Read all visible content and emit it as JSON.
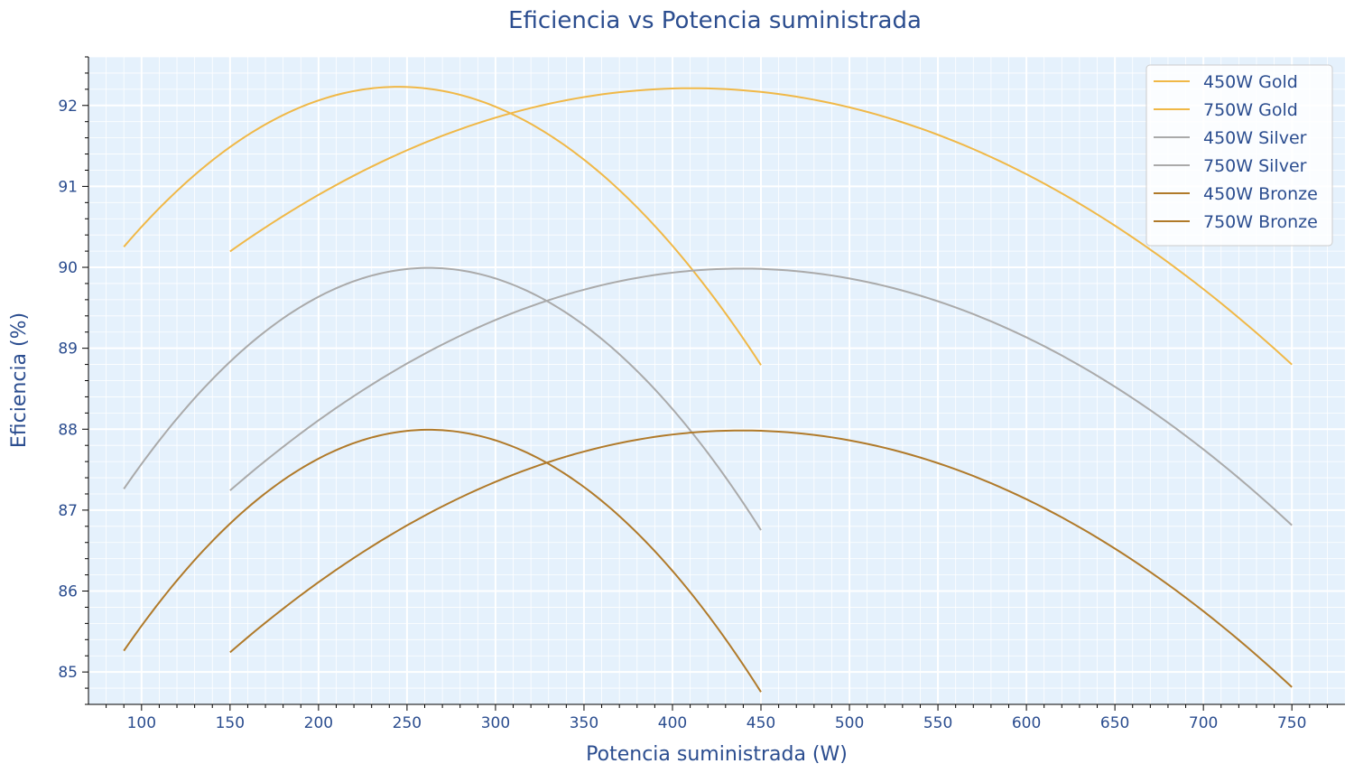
{
  "chart_data": {
    "type": "line",
    "title": "Eficiencia  vs Potencia suministrada",
    "xlabel": "Potencia suministrada (W)",
    "ylabel": "Eficiencia (%)",
    "xlim": [
      70,
      780
    ],
    "ylim": [
      84.6,
      92.6
    ],
    "xticks": [
      100,
      150,
      200,
      250,
      300,
      350,
      400,
      450,
      500,
      550,
      600,
      650,
      700,
      750
    ],
    "yticks": [
      85,
      86,
      87,
      88,
      89,
      90,
      91,
      92
    ],
    "grid": true,
    "legend_position": "top-right",
    "colors": {
      "background": "#e5f1fc",
      "grid": "#ffffff",
      "text": "#2b4d8f",
      "gold": "#f0b847",
      "silver": "#aaaaaa",
      "bronze": "#b07a2a"
    },
    "series": [
      {
        "name": "450W Gold",
        "color": "#f0b847",
        "x": [
          90,
          120,
          150,
          180,
          210,
          230,
          260,
          300,
          350,
          400,
          450
        ],
        "y": [
          90.0,
          90.97,
          91.64,
          92.05,
          92.25,
          92.28,
          92.2,
          91.83,
          91.1,
          90.17,
          89.0
        ]
      },
      {
        "name": "750W Gold",
        "color": "#f0b847",
        "x": [
          150,
          200,
          250,
          300,
          350,
          385,
          450,
          500,
          550,
          600,
          650,
          700,
          750
        ],
        "y": [
          90.0,
          90.9,
          91.55,
          91.98,
          92.22,
          92.28,
          92.16,
          91.92,
          91.52,
          91.0,
          90.4,
          89.73,
          89.0
        ]
      },
      {
        "name": "450W Silver",
        "color": "#aaaaaa",
        "x": [
          90,
          120,
          150,
          180,
          210,
          248,
          280,
          320,
          360,
          400,
          450
        ],
        "y": [
          87.0,
          88.2,
          88.97,
          89.52,
          89.86,
          90.0,
          89.92,
          89.59,
          88.96,
          88.06,
          87.0
        ]
      },
      {
        "name": "750W Silver",
        "color": "#aaaaaa",
        "x": [
          150,
          200,
          250,
          300,
          350,
          410,
          450,
          500,
          550,
          600,
          650,
          700,
          750
        ],
        "y": [
          87.0,
          88.15,
          88.95,
          89.5,
          89.85,
          90.0,
          89.97,
          89.78,
          89.45,
          89.0,
          88.43,
          87.76,
          87.0
        ]
      },
      {
        "name": "450W Bronze",
        "color": "#b07a2a",
        "x": [
          90,
          120,
          150,
          180,
          210,
          248,
          280,
          320,
          360,
          400,
          450
        ],
        "y": [
          85.0,
          86.2,
          86.97,
          87.52,
          87.86,
          88.0,
          87.92,
          87.59,
          86.96,
          86.06,
          85.0
        ]
      },
      {
        "name": "750W Bronze",
        "color": "#b07a2a",
        "x": [
          150,
          200,
          250,
          300,
          350,
          410,
          450,
          500,
          550,
          600,
          650,
          700,
          750
        ],
        "y": [
          85.0,
          86.15,
          86.95,
          87.5,
          87.85,
          88.0,
          87.97,
          87.78,
          87.45,
          87.0,
          86.43,
          85.76,
          85.0
        ]
      }
    ]
  }
}
